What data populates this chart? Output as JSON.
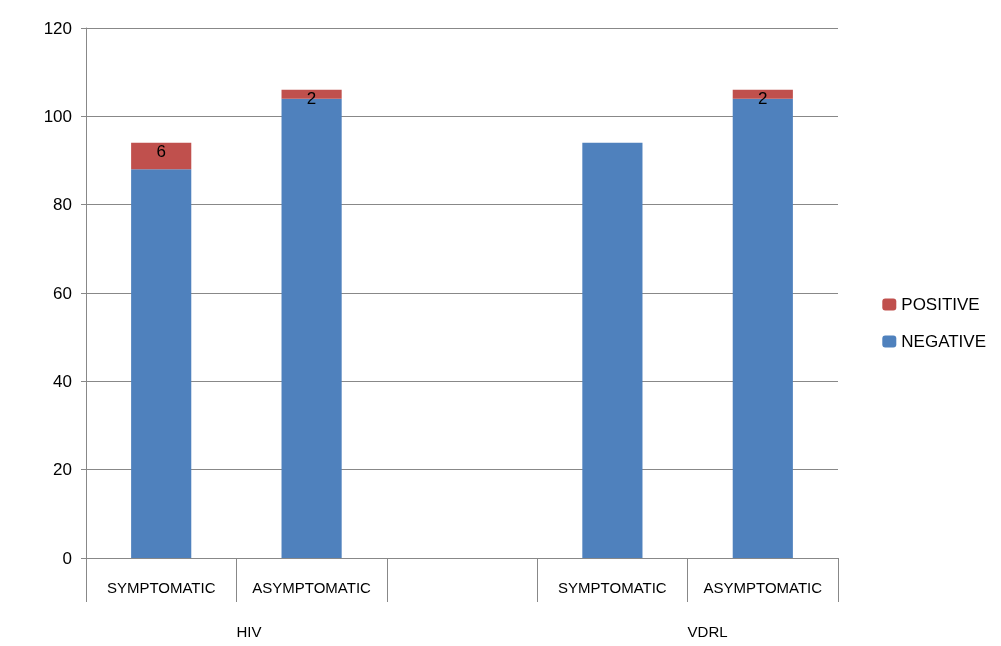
{
  "chart_data": {
    "type": "bar",
    "stacked": true,
    "categories": [
      "SYMPTOMATIC",
      "ASYMPTOMATIC",
      null,
      "SYMPTOMATIC",
      "ASYMPTOMATIC"
    ],
    "series": [
      {
        "name": "NEGATIVE",
        "color": "#4f81bd",
        "values": [
          88,
          104,
          null,
          94,
          104
        ]
      },
      {
        "name": "POSITIVE",
        "color": "#c0504d",
        "values": [
          6,
          2,
          null,
          null,
          2
        ],
        "value_labels": [
          "6",
          "2",
          null,
          null,
          "2"
        ]
      }
    ],
    "annotations": [
      "HIV",
      "VDRL"
    ],
    "ylim": [
      0,
      120
    ],
    "yticks": [
      0,
      20,
      40,
      60,
      80,
      100,
      120
    ],
    "grid": "y",
    "legend": "right"
  }
}
